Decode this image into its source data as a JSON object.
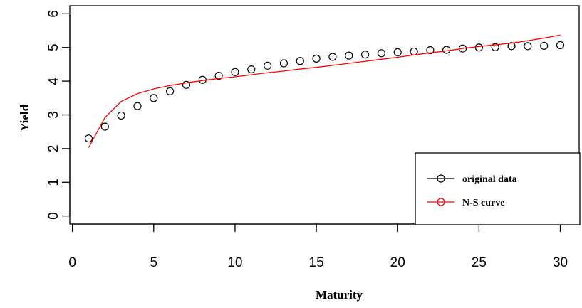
{
  "chart_data": {
    "type": "scatter",
    "title": "",
    "xlabel": "Maturity",
    "ylabel": "Yield",
    "xlim": [
      1,
      30
    ],
    "ylim": [
      0,
      6
    ],
    "x_ticks": [
      "0",
      "5",
      "10",
      "15",
      "20",
      "25",
      "30"
    ],
    "y_ticks": [
      "0",
      "1",
      "2",
      "3",
      "4",
      "5",
      "6"
    ],
    "grid": false,
    "legend_position": "bottom-right",
    "x": [
      1,
      2,
      3,
      4,
      5,
      6,
      7,
      8,
      9,
      10,
      11,
      12,
      13,
      14,
      15,
      16,
      17,
      18,
      19,
      20,
      21,
      22,
      23,
      24,
      25,
      26,
      27,
      28,
      29,
      30
    ],
    "series": [
      {
        "name": "original data",
        "style": "points",
        "color": "#000000",
        "values": [
          2.3,
          2.65,
          2.98,
          3.26,
          3.5,
          3.7,
          3.89,
          4.04,
          4.16,
          4.27,
          4.35,
          4.46,
          4.53,
          4.6,
          4.67,
          4.72,
          4.76,
          4.79,
          4.83,
          4.86,
          4.88,
          4.92,
          4.93,
          4.97,
          5.0,
          5.01,
          5.04,
          5.04,
          5.05,
          5.07
        ]
      },
      {
        "name": "N-S curve",
        "style": "line",
        "color": "#ff0000",
        "values": [
          2.03,
          2.92,
          3.4,
          3.63,
          3.77,
          3.87,
          3.95,
          4.02,
          4.08,
          4.13,
          4.19,
          4.25,
          4.3,
          4.36,
          4.41,
          4.47,
          4.53,
          4.59,
          4.65,
          4.71,
          4.78,
          4.84,
          4.9,
          4.97,
          5.03,
          5.08,
          5.13,
          5.2,
          5.28,
          5.37
        ]
      }
    ]
  }
}
